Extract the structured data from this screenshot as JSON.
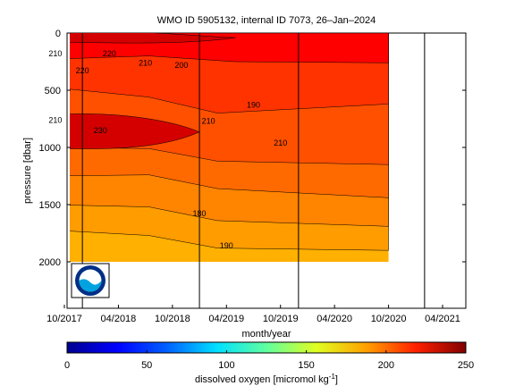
{
  "chart_data": {
    "type": "heatmap",
    "title": "WMO ID 5905132, internal ID 7073, 26–Jan–2024",
    "xlabel": "month/year",
    "ylabel": "pressure [dbar]",
    "x_ticks": [
      "10/2017",
      "04/2018",
      "10/2018",
      "04/2019",
      "10/2019",
      "04/2020",
      "10/2020",
      "04/2021"
    ],
    "y_ticks": [
      "0",
      "500",
      "1000",
      "1500",
      "2000"
    ],
    "ylim": [
      0,
      2400
    ],
    "y_reversed": true,
    "data_range": [
      "08/2017",
      "10/2020"
    ],
    "vertical_markers": [
      "12/2017",
      "01/2019",
      "12/2019",
      "02/2021"
    ],
    "colorbar": {
      "label": "dissolved oxygen [micromol kg",
      "label_superscript": "-1",
      "label_suffix": "]",
      "ticks": [
        "0",
        "50",
        "100",
        "150",
        "200",
        "250"
      ],
      "range": [
        0,
        250
      ],
      "colors": [
        "#00008f",
        "#0000ff",
        "#0080ff",
        "#00ffff",
        "#80ff80",
        "#ffff00",
        "#ff8000",
        "#ff0000",
        "#800000"
      ]
    },
    "contour_labels": [
      {
        "text": "210",
        "date": "09/2017",
        "pressure": 180
      },
      {
        "text": "220",
        "date": "03/2018",
        "pressure": 180
      },
      {
        "text": "210",
        "date": "07/2018",
        "pressure": 260
      },
      {
        "text": "200",
        "date": "11/2018",
        "pressure": 280
      },
      {
        "text": "220",
        "date": "12/2017",
        "pressure": 330
      },
      {
        "text": "190",
        "date": "07/2019",
        "pressure": 630
      },
      {
        "text": "210",
        "date": "09/2017",
        "pressure": 760
      },
      {
        "text": "230",
        "date": "02/2018",
        "pressure": 850
      },
      {
        "text": "210",
        "date": "02/2019",
        "pressure": 770
      },
      {
        "text": "210",
        "date": "10/2019",
        "pressure": 960
      },
      {
        "text": "180",
        "date": "01/2019",
        "pressure": 1580
      },
      {
        "text": "190",
        "date": "04/2019",
        "pressure": 1860
      }
    ],
    "bands": [
      {
        "value": 220,
        "color": "#ff0000",
        "boundary": [
          [
            0,
            230
          ],
          [
            0.3,
            200
          ],
          [
            0.55,
            250
          ],
          [
            1,
            260
          ]
        ]
      },
      {
        "value": 210,
        "color": "#ff3300",
        "boundary": [
          [
            0,
            470
          ],
          [
            0.3,
            560
          ],
          [
            0.5,
            700
          ],
          [
            1,
            620
          ]
        ]
      },
      {
        "value": 200,
        "color": "#ff5000",
        "boundary": [
          [
            0,
            1000
          ],
          [
            0.3,
            1010
          ],
          [
            0.5,
            1120
          ],
          [
            1,
            1150
          ]
        ]
      },
      {
        "value": 190,
        "color": "#ff6a00",
        "boundary": [
          [
            0,
            1250
          ],
          [
            0.3,
            1240
          ],
          [
            0.5,
            1360
          ],
          [
            1,
            1440
          ]
        ]
      },
      {
        "value": 180,
        "color": "#ff8400",
        "boundary": [
          [
            0,
            1500
          ],
          [
            0.3,
            1520
          ],
          [
            0.5,
            1640
          ],
          [
            1,
            1690
          ]
        ]
      },
      {
        "value": 170,
        "color": "#ff9c00",
        "boundary": [
          [
            0,
            1720
          ],
          [
            0.3,
            1770
          ],
          [
            0.5,
            1880
          ],
          [
            1,
            1900
          ]
        ]
      },
      {
        "value": 160,
        "color": "#ffb000",
        "boundary": [
          [
            0,
            2000
          ],
          [
            1,
            2000
          ]
        ]
      }
    ],
    "core_patches": [
      {
        "value": 230,
        "color": "#d40000",
        "date_from": "08/2017",
        "date_to": "01/2019",
        "p_from": 720,
        "p_to": 1010
      },
      {
        "value": 230,
        "color": "#d40000",
        "date_from": "08/2017",
        "date_to": "05/2019",
        "p_from": 0,
        "p_to": 80
      }
    ]
  },
  "logo": {
    "text": "NOAA",
    "ring_color": "#003087",
    "sky_color": "#ffffff",
    "wave_color": "#00a3e0"
  }
}
